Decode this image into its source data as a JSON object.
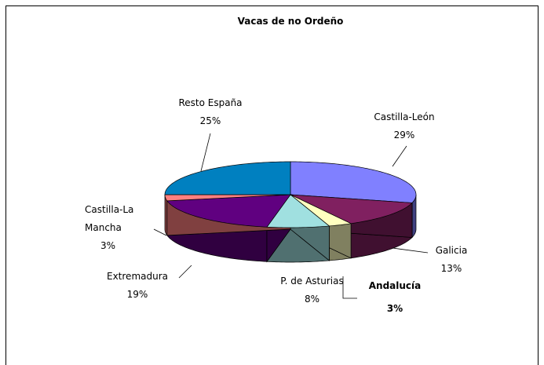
{
  "chart_data": {
    "type": "pie3d",
    "title": "Vacas de no Ordeño",
    "categories": [
      "Castilla-León",
      "Galicia",
      "Andalucía",
      "P. de Asturias",
      "Extremadura",
      "Castilla-La Mancha",
      "Resto España"
    ],
    "values": [
      29,
      13,
      3,
      8,
      19,
      3,
      25
    ],
    "value_labels": [
      "29%",
      "13%",
      "3%",
      "8%",
      "19%",
      "3%",
      "25%"
    ],
    "colors": [
      "#8080ff",
      "#802060",
      "#ffffc0",
      "#a0e0e0",
      "#600080",
      "#ff8080",
      "#0080c0"
    ]
  }
}
